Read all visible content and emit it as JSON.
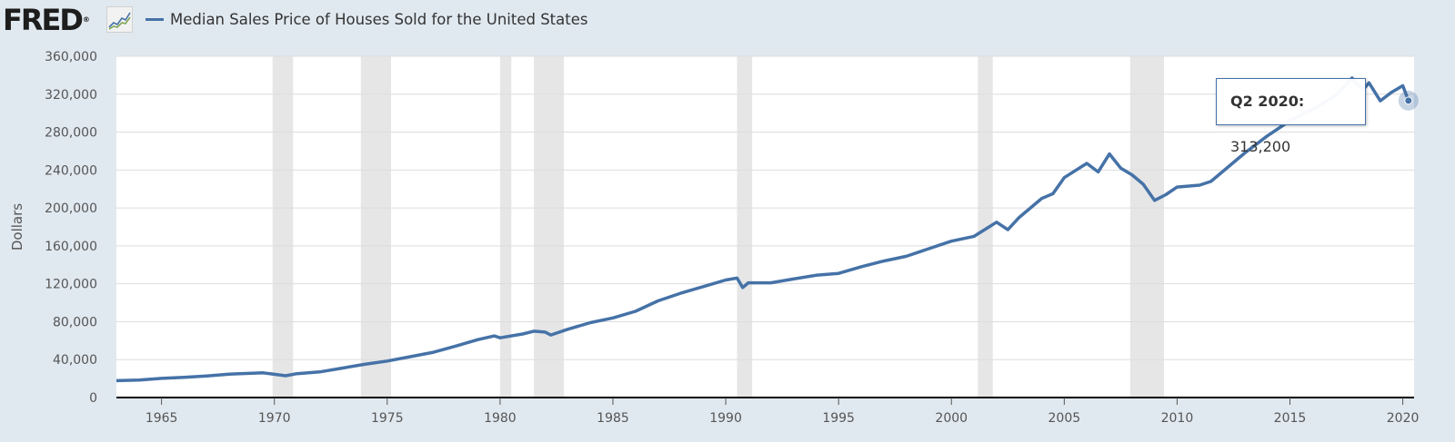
{
  "header": {
    "logo": "FRED",
    "logo_mark": "®",
    "logo_icon": "line-graph-icon"
  },
  "tooltip": {
    "label": "Q2 2020:",
    "value": "313,200"
  },
  "colors": {
    "series": "#4572a7",
    "recession": "#e6e6e6",
    "background": "#e1e9f0",
    "plot": "#ffffff",
    "grid": "#dddddd"
  },
  "chart_data": {
    "type": "line",
    "frequency": "quarterly",
    "title": "Median Sales Price of Houses Sold for the United States",
    "xlabel": "",
    "ylabel": "Dollars",
    "xlim": [
      1963.0,
      2020.5
    ],
    "ylim": [
      0,
      360000
    ],
    "grid": true,
    "legend": "top-left",
    "x_ticks": [
      "1965",
      "1970",
      "1975",
      "1980",
      "1985",
      "1990",
      "1995",
      "2000",
      "2005",
      "2010",
      "2015",
      "2020"
    ],
    "y_ticks": [
      "0",
      "40,000",
      "80,000",
      "120,000",
      "160,000",
      "200,000",
      "240,000",
      "280,000",
      "320,000",
      "360,000"
    ],
    "recessions": [
      [
        1969.92,
        1970.83
      ],
      [
        1973.83,
        1975.17
      ],
      [
        1980.0,
        1980.5
      ],
      [
        1981.5,
        1982.83
      ],
      [
        1990.5,
        1991.17
      ],
      [
        2001.17,
        2001.83
      ],
      [
        2007.92,
        2009.42
      ]
    ],
    "series": [
      {
        "name": "Median Sales Price of Houses Sold for the United States",
        "points": [
          [
            1963.0,
            17800
          ],
          [
            1964.0,
            18500
          ],
          [
            1965.0,
            20200
          ],
          [
            1966.0,
            21300
          ],
          [
            1967.0,
            22800
          ],
          [
            1968.0,
            24700
          ],
          [
            1969.0,
            25600
          ],
          [
            1969.5,
            26000
          ],
          [
            1970.0,
            24500
          ],
          [
            1970.5,
            23000
          ],
          [
            1971.0,
            25200
          ],
          [
            1972.0,
            27000
          ],
          [
            1973.0,
            31000
          ],
          [
            1974.0,
            35000
          ],
          [
            1975.0,
            38500
          ],
          [
            1976.0,
            43000
          ],
          [
            1977.0,
            47500
          ],
          [
            1978.0,
            54000
          ],
          [
            1979.0,
            61000
          ],
          [
            1979.75,
            65000
          ],
          [
            1980.0,
            63000
          ],
          [
            1981.0,
            67000
          ],
          [
            1981.5,
            70000
          ],
          [
            1982.0,
            69000
          ],
          [
            1982.25,
            66000
          ],
          [
            1983.0,
            72000
          ],
          [
            1984.0,
            79000
          ],
          [
            1985.0,
            84000
          ],
          [
            1986.0,
            91000
          ],
          [
            1987.0,
            102000
          ],
          [
            1988.0,
            110000
          ],
          [
            1989.0,
            117000
          ],
          [
            1990.0,
            124000
          ],
          [
            1990.5,
            126000
          ],
          [
            1990.75,
            116000
          ],
          [
            1991.0,
            121000
          ],
          [
            1992.0,
            121000
          ],
          [
            1993.0,
            125000
          ],
          [
            1994.0,
            129000
          ],
          [
            1995.0,
            131000
          ],
          [
            1996.0,
            138000
          ],
          [
            1997.0,
            144000
          ],
          [
            1998.0,
            149000
          ],
          [
            1999.0,
            157000
          ],
          [
            2000.0,
            165000
          ],
          [
            2001.0,
            170000
          ],
          [
            2002.0,
            185000
          ],
          [
            2002.5,
            177000
          ],
          [
            2003.0,
            190000
          ],
          [
            2004.0,
            210000
          ],
          [
            2004.5,
            215000
          ],
          [
            2005.0,
            232000
          ],
          [
            2006.0,
            247000
          ],
          [
            2006.5,
            238000
          ],
          [
            2007.0,
            257000
          ],
          [
            2007.5,
            242000
          ],
          [
            2008.0,
            235000
          ],
          [
            2008.5,
            225000
          ],
          [
            2009.0,
            208000
          ],
          [
            2009.5,
            214000
          ],
          [
            2010.0,
            222000
          ],
          [
            2011.0,
            224000
          ],
          [
            2011.5,
            228000
          ],
          [
            2012.0,
            238000
          ],
          [
            2013.0,
            258000
          ],
          [
            2014.0,
            276000
          ],
          [
            2015.0,
            292000
          ],
          [
            2016.0,
            304000
          ],
          [
            2017.0,
            318000
          ],
          [
            2017.75,
            337000
          ],
          [
            2018.0,
            330000
          ],
          [
            2018.25,
            325000
          ],
          [
            2018.5,
            332000
          ],
          [
            2019.0,
            313000
          ],
          [
            2019.5,
            322000
          ],
          [
            2020.0,
            329000
          ],
          [
            2020.25,
            313200
          ]
        ]
      }
    ]
  }
}
